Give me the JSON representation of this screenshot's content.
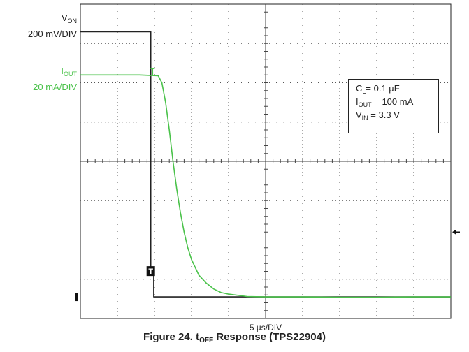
{
  "chart_data": {
    "type": "line",
    "title_prefix": "Figure 24. t",
    "title_sub": "OFF",
    "title_suffix": " Response (TPS22904)",
    "xlabel": "5 µs/DIV",
    "grid": true,
    "divisions": {
      "x": 10,
      "y": 8
    },
    "channels": [
      {
        "name_main": "V",
        "name_sub": "ON",
        "scale": "200 mV/DIV",
        "color": "#222222"
      },
      {
        "name_main": "I",
        "name_sub": "OUT",
        "scale": "20 mA/DIV",
        "color": "#4ac24a"
      }
    ],
    "series": [
      {
        "name": "VON",
        "color": "#222222",
        "x": [
          0,
          1.9,
          1.9,
          1.98,
          1.98,
          10
        ],
        "y": [
          7.3,
          7.3,
          1.1,
          1.1,
          0.55,
          0.55
        ]
      },
      {
        "name": "IOUT",
        "color": "#4ac24a",
        "x": [
          0,
          1.6,
          2.1,
          2.2,
          2.3,
          2.4,
          2.5,
          2.6,
          2.7,
          2.8,
          2.9,
          3.0,
          3.2,
          3.4,
          3.6,
          3.8,
          4.0,
          4.5,
          5.0,
          6.0,
          7.0,
          8.0,
          9.0,
          10
        ],
        "y": [
          6.2,
          6.2,
          6.18,
          6.0,
          5.5,
          4.8,
          4.0,
          3.3,
          2.7,
          2.2,
          1.8,
          1.5,
          1.1,
          0.9,
          0.75,
          0.66,
          0.62,
          0.56,
          0.55,
          0.55,
          0.54,
          0.54,
          0.55,
          0.55
        ]
      }
    ],
    "annotation": [
      {
        "main": "C",
        "sub": "L",
        "rest": "= 0.1 µF"
      },
      {
        "main": "I",
        "sub": "OUT",
        "rest": " = 100 mA"
      },
      {
        "main": "V",
        "sub": "IN",
        "rest": " = 3.3 V"
      }
    ],
    "trigger_marker": "T"
  }
}
